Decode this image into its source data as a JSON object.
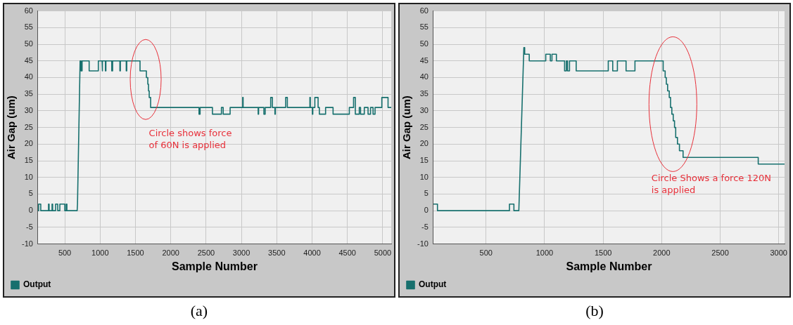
{
  "chart_data": [
    {
      "type": "line",
      "xlabel": "Sample Number",
      "ylabel": "Air Gap (um)",
      "xlim": [
        120,
        5120
      ],
      "xticks": [
        500,
        1000,
        1500,
        2000,
        2500,
        3000,
        3500,
        4000,
        4500,
        5000
      ],
      "ylim": [
        -10,
        60
      ],
      "yticks": [
        -10,
        -5,
        0,
        5,
        10,
        15,
        20,
        25,
        30,
        35,
        40,
        45,
        50,
        55,
        60
      ],
      "grid": true,
      "legend": "bottom left",
      "marker": "none",
      "line_style": "solid",
      "annotations": [
        "Circle shows force\nof 60N is applied",
        "(a)"
      ],
      "series": [
        {
          "name": "Output",
          "color": "#17706e",
          "x": [
            120,
            130,
            130,
            160,
            160,
            270,
            270,
            278,
            278,
            320,
            320,
            328,
            328,
            370,
            370,
            400,
            400,
            430,
            430,
            500,
            500,
            520,
            520,
            530,
            530,
            675,
            680,
            717,
            730,
            730,
            745,
            745,
            845,
            845,
            975,
            975,
            1028,
            1028,
            1035,
            1035,
            1075,
            1075,
            1082,
            1082,
            1165,
            1165,
            1177,
            1177,
            1280,
            1280,
            1287,
            1287,
            1370,
            1370,
            1377,
            1377,
            1565,
            1565,
            1655,
            1655,
            1675,
            1675,
            1685,
            1685,
            1695,
            1695,
            1715,
            1715,
            2400,
            2400,
            2415,
            2415,
            2590,
            2590,
            2717,
            2717,
            2742,
            2742,
            2840,
            2840,
            3018,
            3018,
            3024,
            3024,
            3237,
            3237,
            3243,
            3243,
            3318,
            3318,
            3336,
            3336,
            3414,
            3414,
            3438,
            3438,
            3474,
            3474,
            3480,
            3480,
            3626,
            3626,
            3650,
            3650,
            3969,
            3969,
            3975,
            3975,
            4004,
            4004,
            4010,
            4010,
            4039,
            4039,
            4085,
            4085,
            4103,
            4103,
            4191,
            4191,
            4297,
            4297,
            4527,
            4527,
            4587,
            4587,
            4612,
            4612,
            4668,
            4668,
            4686,
            4686,
            4739,
            4739,
            4792,
            4792,
            4827,
            4827,
            4863,
            4863,
            4891,
            4891,
            4987,
            4987,
            5075,
            5075,
            5120
          ],
          "values": [
            0,
            0,
            2,
            2,
            0,
            0,
            2,
            2,
            0,
            0,
            2,
            2,
            0,
            0,
            2,
            2,
            0,
            0,
            2,
            2,
            0,
            0,
            2,
            2,
            0,
            0,
            2,
            45,
            45,
            42,
            42,
            45,
            45,
            42,
            42,
            45,
            45,
            42,
            42,
            45,
            45,
            42,
            42,
            45,
            45,
            42,
            42,
            45,
            45,
            42,
            42,
            45,
            45,
            42,
            42,
            45,
            45,
            42,
            42,
            40,
            40,
            38,
            38,
            36,
            36,
            34,
            34,
            31,
            31,
            29,
            29,
            31,
            31,
            29,
            29,
            31,
            31,
            29,
            29,
            31,
            31,
            34,
            34,
            31,
            31,
            29,
            29,
            31,
            31,
            29,
            29,
            31,
            31,
            34,
            34,
            31,
            31,
            29,
            29,
            31,
            31,
            34,
            34,
            31,
            31,
            34,
            34,
            31,
            31,
            29,
            29,
            31,
            31,
            34,
            34,
            31,
            31,
            29,
            29,
            31,
            31,
            29,
            29,
            31,
            31,
            34,
            34,
            29,
            29,
            31,
            31,
            29,
            29,
            31,
            31,
            29,
            29,
            31,
            31,
            29,
            29,
            31,
            31,
            34,
            34,
            31,
            31
          ]
        }
      ]
    },
    {
      "type": "line",
      "xlabel": "Sample Number",
      "ylabel": "Air Gap (um)",
      "xlim": [
        50,
        3050
      ],
      "xticks": [
        500,
        1000,
        1500,
        2000,
        2500,
        3000
      ],
      "ylim": [
        -10,
        60
      ],
      "yticks": [
        -10,
        -5,
        0,
        5,
        10,
        15,
        20,
        25,
        30,
        35,
        40,
        45,
        50,
        55,
        60
      ],
      "grid": true,
      "legend": "bottom left",
      "marker": "none",
      "line_style": "solid",
      "annotations": [
        "Circle Shows a force 120N\nis applied",
        "(b)"
      ],
      "series": [
        {
          "name": "Output",
          "color": "#17706e",
          "x": [
            50,
            85,
            85,
            700,
            700,
            738,
            738,
            780,
            823,
            830,
            830,
            869,
            869,
            1010,
            1010,
            1049,
            1049,
            1063,
            1063,
            1101,
            1101,
            1171,
            1171,
            1186,
            1186,
            1196,
            1196,
            1213,
            1213,
            1270,
            1270,
            1544,
            1544,
            1582,
            1582,
            1622,
            1622,
            1696,
            1696,
            1772,
            1772,
            2013,
            2013,
            2030,
            2030,
            2040,
            2040,
            2051,
            2051,
            2065,
            2065,
            2076,
            2076,
            2087,
            2087,
            2099,
            2099,
            2110,
            2110,
            2120,
            2120,
            2135,
            2135,
            2152,
            2152,
            2183,
            2183,
            2825,
            2825,
            3050
          ],
          "values": [
            2,
            2,
            0,
            0,
            2,
            2,
            0,
            0,
            49,
            49,
            47,
            47,
            45,
            45,
            47,
            47,
            45,
            45,
            47,
            47,
            45,
            45,
            42,
            42,
            45,
            45,
            42,
            42,
            45,
            45,
            42,
            42,
            45,
            45,
            42,
            42,
            45,
            45,
            42,
            42,
            45,
            45,
            42,
            42,
            40,
            40,
            38,
            38,
            36,
            36,
            34,
            34,
            31,
            31,
            29,
            29,
            27,
            27,
            25,
            25,
            22,
            22,
            20,
            20,
            18,
            18,
            16,
            16,
            14,
            14
          ]
        }
      ]
    }
  ]
}
